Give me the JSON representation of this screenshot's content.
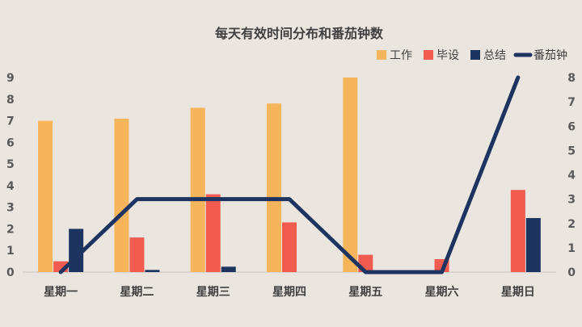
{
  "chart_data": {
    "type": "bar",
    "title": "每天有效时间分布和番茄钟数",
    "categories": [
      "星期一",
      "星期二",
      "星期三",
      "星期四",
      "星期五",
      "星期六",
      "星期日"
    ],
    "series": [
      {
        "name": "工作",
        "type": "bar",
        "axis": "left",
        "color": "#f7b55b",
        "values": [
          7.0,
          7.1,
          7.6,
          7.8,
          9.0,
          0,
          0
        ]
      },
      {
        "name": "毕设",
        "type": "bar",
        "axis": "left",
        "color": "#f25c50",
        "values": [
          0.5,
          1.6,
          3.6,
          2.3,
          0.8,
          0.6,
          3.8
        ]
      },
      {
        "name": "总结",
        "type": "bar",
        "axis": "left",
        "color": "#1d3461",
        "values": [
          2.0,
          0.1,
          0.25,
          0,
          0,
          0,
          2.5
        ]
      },
      {
        "name": "番茄钟",
        "type": "line",
        "axis": "right",
        "color": "#1d3461",
        "values": [
          0,
          3,
          3,
          3,
          0,
          0,
          8
        ]
      }
    ],
    "y_left": {
      "ylim": [
        0,
        9
      ],
      "ticks": [
        "0",
        "1",
        "2",
        "3",
        "4",
        "5",
        "6",
        "7",
        "8",
        "9"
      ]
    },
    "y_right": {
      "ylim": [
        0,
        8
      ],
      "ticks": [
        "0",
        "1",
        "2",
        "3",
        "4",
        "5",
        "6",
        "7",
        "8"
      ]
    },
    "grid": false,
    "legend_position": "top-right"
  }
}
